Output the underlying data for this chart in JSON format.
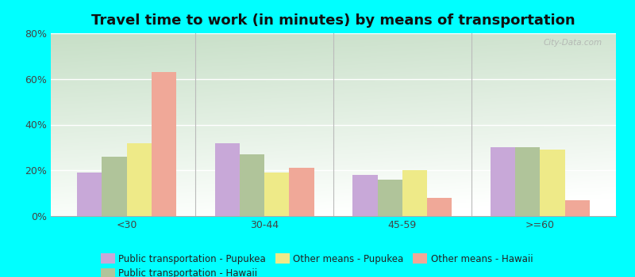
{
  "title": "Travel time to work (in minutes) by means of transportation",
  "categories": [
    "<30",
    "30-44",
    "45-59",
    ">=60"
  ],
  "series_order": [
    "Public transportation - Pupukea",
    "Public transportation - Hawaii",
    "Other means - Pupukea",
    "Other means - Hawaii"
  ],
  "series": {
    "Public transportation - Pupukea": [
      19,
      32,
      18,
      30
    ],
    "Public transportation - Hawaii": [
      26,
      27,
      16,
      30
    ],
    "Other means - Pupukea": [
      32,
      19,
      20,
      29
    ],
    "Other means - Hawaii": [
      63,
      21,
      8,
      7
    ]
  },
  "colors": {
    "Public transportation - Pupukea": "#c8a8d8",
    "Public transportation - Hawaii": "#b0c49a",
    "Other means - Pupukea": "#eeea88",
    "Other means - Hawaii": "#f0a898"
  },
  "ylim": [
    0,
    80
  ],
  "yticks": [
    0,
    20,
    40,
    60,
    80
  ],
  "ytick_labels": [
    "0%",
    "20%",
    "40%",
    "60%",
    "80%"
  ],
  "background_color": "#00ffff",
  "title_fontsize": 13,
  "legend_fontsize": 8.5,
  "tick_fontsize": 9,
  "bar_width": 0.18,
  "watermark": "City-Data.com"
}
